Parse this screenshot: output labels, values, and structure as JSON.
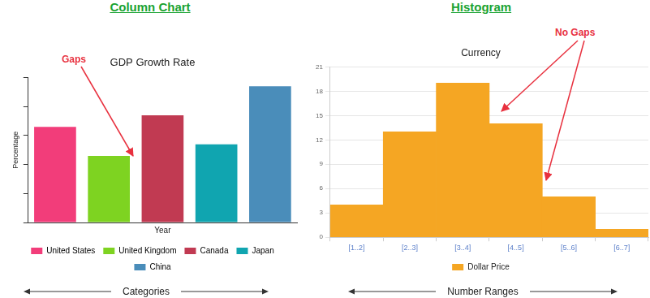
{
  "chart_data": [
    {
      "type": "bar",
      "header": "Column Chart",
      "title": "GDP Growth Rate",
      "ylabel": "Percentage",
      "xlabel": "Year",
      "categories": [
        "United States",
        "United Kingdom",
        "Canada",
        "Japan",
        "China"
      ],
      "values": [
        3.3,
        2.3,
        3.7,
        2.7,
        4.7
      ],
      "colors": [
        "#f23d7a",
        "#7ed321",
        "#c13a52",
        "#10a5b0",
        "#4a8dba"
      ],
      "ylim": [
        0,
        5
      ],
      "yticks": [
        0,
        1,
        2,
        3,
        4,
        5
      ],
      "grid": false,
      "legend": "bottom",
      "tick_labels": false,
      "annotations": [
        "Gaps"
      ],
      "footer": "Categories"
    },
    {
      "type": "histogram",
      "header": "Histogram",
      "title": "Currency",
      "categories": [
        "[1..2]",
        "[2..3]",
        "[3..4]",
        "[4..5]",
        "[5..6]",
        "[6..7]"
      ],
      "series": [
        {
          "name": "Dollar Price",
          "color": "#f5a623",
          "values": [
            4,
            13,
            19,
            14,
            5,
            1
          ]
        }
      ],
      "ylim": [
        0,
        21
      ],
      "yticks": [
        0,
        3,
        6,
        9,
        12,
        15,
        18,
        21
      ],
      "grid": true,
      "legend": "bottom",
      "annotations": [
        "No Gaps"
      ],
      "footer": "Number Ranges"
    }
  ]
}
